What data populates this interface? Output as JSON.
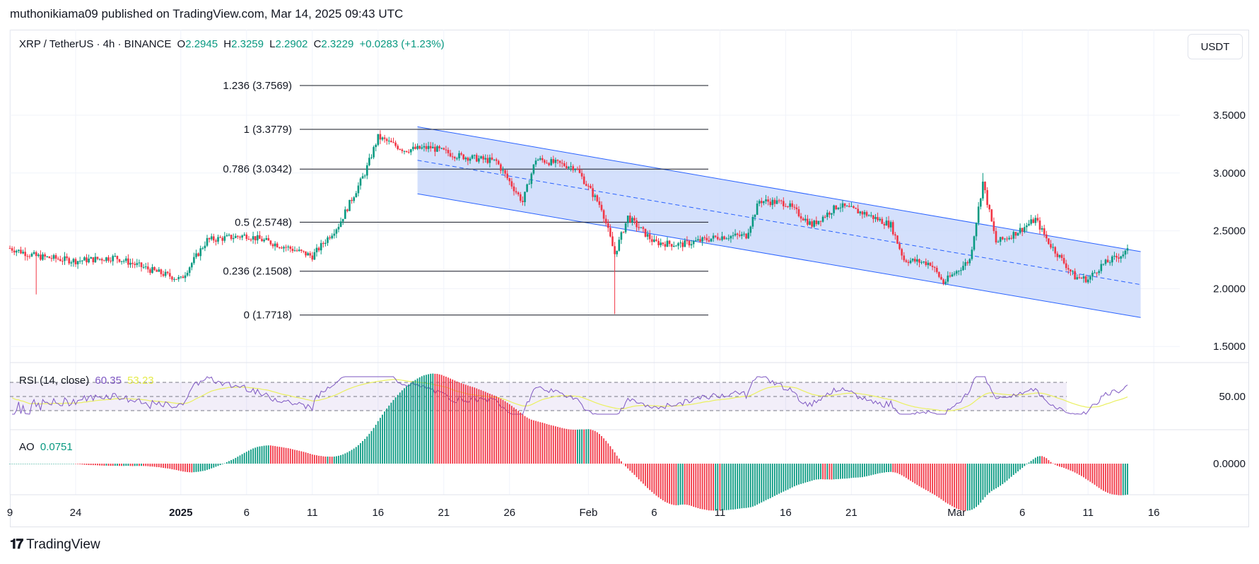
{
  "header": {
    "publisher": "muthonikiama09 published on TradingView.com, Mar 14, 2025 09:43 UTC"
  },
  "symbol": {
    "title": "XRP / TetherUS · 4h · BINANCE",
    "o_label": "O",
    "o": "2.2945",
    "h_label": "H",
    "h": "2.3259",
    "l_label": "L",
    "l": "2.2902",
    "c_label": "C",
    "c": "2.3229",
    "change": "+0.0283 (+1.23%)"
  },
  "unit_button": "USDT",
  "rsi": {
    "label": "RSI (14, close)",
    "value": "60.35",
    "ma": "53.23",
    "axis": "50.00"
  },
  "ao": {
    "label": "AO",
    "value": "0.0751",
    "axis": "0.0000"
  },
  "footer": {
    "brand": "TradingView"
  },
  "colors": {
    "up": "#089981",
    "down": "#f23645",
    "channel_fill": "#c6d5fb",
    "channel_line": "#2962ff",
    "rsi_line": "#7e57c2",
    "rsi_ma": "#eaf05f"
  },
  "chart_data": [
    {
      "type": "candlestick",
      "pair": "XRP / TetherUS",
      "interval": "4h",
      "x_ticks": [
        "9",
        "24",
        "2025",
        "6",
        "11",
        "16",
        "21",
        "26",
        "Feb",
        "6",
        "11",
        "16",
        "21",
        "Mar",
        "6",
        "11",
        "16"
      ],
      "y_ticks": [
        "1.5000",
        "2.0000",
        "2.5000",
        "3.0000",
        "3.5000"
      ],
      "ylim": [
        1.45,
        4.0
      ],
      "close_path": [
        {
          "t": "Dec 19",
          "price": 2.35
        },
        {
          "t": "Dec 21",
          "price": 2.28
        },
        {
          "t": "Dec 24",
          "price": 2.24
        },
        {
          "t": "Dec 27",
          "price": 2.27
        },
        {
          "t": "Dec 30",
          "price": 2.15
        },
        {
          "t": "Jan 1",
          "price": 2.08
        },
        {
          "t": "Jan 3",
          "price": 2.42
        },
        {
          "t": "Jan 6",
          "price": 2.46
        },
        {
          "t": "Jan 9",
          "price": 2.36
        },
        {
          "t": "Jan 11",
          "price": 2.28
        },
        {
          "t": "Jan 13",
          "price": 2.55
        },
        {
          "t": "Jan 15",
          "price": 3.0
        },
        {
          "t": "Jan 16",
          "price": 3.31
        },
        {
          "t": "Jan 18",
          "price": 3.2
        },
        {
          "t": "Jan 20",
          "price": 3.22
        },
        {
          "t": "Jan 22",
          "price": 3.15
        },
        {
          "t": "Jan 25",
          "price": 3.1
        },
        {
          "t": "Jan 27",
          "price": 2.75
        },
        {
          "t": "Jan 28",
          "price": 3.12
        },
        {
          "t": "Jan 31",
          "price": 3.05
        },
        {
          "t": "Feb 2",
          "price": 2.7
        },
        {
          "t": "Feb 3",
          "price": 2.3
        },
        {
          "t": "Feb 4",
          "price": 2.62
        },
        {
          "t": "Feb 6",
          "price": 2.4
        },
        {
          "t": "Feb 8",
          "price": 2.38
        },
        {
          "t": "Feb 11",
          "price": 2.45
        },
        {
          "t": "Feb 13",
          "price": 2.46
        },
        {
          "t": "Feb 14",
          "price": 2.76
        },
        {
          "t": "Feb 16",
          "price": 2.74
        },
        {
          "t": "Feb 18",
          "price": 2.55
        },
        {
          "t": "Feb 20",
          "price": 2.72
        },
        {
          "t": "Feb 22",
          "price": 2.65
        },
        {
          "t": "Feb 24",
          "price": 2.55
        },
        {
          "t": "Feb 25",
          "price": 2.25
        },
        {
          "t": "Feb 27",
          "price": 2.22
        },
        {
          "t": "Feb 28",
          "price": 2.05
        },
        {
          "t": "Mar 2",
          "price": 2.25
        },
        {
          "t": "Mar 3",
          "price": 2.92
        },
        {
          "t": "Mar 4",
          "price": 2.4
        },
        {
          "t": "Mar 5",
          "price": 2.45
        },
        {
          "t": "Mar 6",
          "price": 2.52
        },
        {
          "t": "Mar 7",
          "price": 2.6
        },
        {
          "t": "Mar 8",
          "price": 2.4
        },
        {
          "t": "Mar 10",
          "price": 2.1
        },
        {
          "t": "Mar 11",
          "price": 2.08
        },
        {
          "t": "Mar 12",
          "price": 2.2
        },
        {
          "t": "Mar 14",
          "price": 2.3229
        }
      ],
      "fib_levels": [
        {
          "ratio": "1.236",
          "label": "1.236 (3.7569)",
          "price": 3.7569
        },
        {
          "ratio": "1",
          "label": "1 (3.3779)",
          "price": 3.3779
        },
        {
          "ratio": "0.786",
          "label": "0.786 (3.0342)",
          "price": 3.0342
        },
        {
          "ratio": "0.5",
          "label": "0.5 (2.5748)",
          "price": 2.5748
        },
        {
          "ratio": "0.236",
          "label": "0.236 (2.1508)",
          "price": 2.1508
        },
        {
          "ratio": "0",
          "label": "0 (1.7718)",
          "price": 1.7718
        }
      ],
      "channel": {
        "start": "Jan 19",
        "end": "Mar 15",
        "upper": [
          3.4,
          2.32
        ],
        "lower": [
          2.82,
          1.75
        ]
      }
    },
    {
      "type": "line",
      "name": "RSI (14, close)",
      "ylim": [
        20,
        80
      ],
      "band": [
        30,
        70
      ],
      "midline": 50,
      "last": 60.35,
      "ma_last": 53.23
    },
    {
      "type": "bar",
      "name": "AO",
      "last": 0.0751,
      "zero_label": "0.0000"
    }
  ]
}
